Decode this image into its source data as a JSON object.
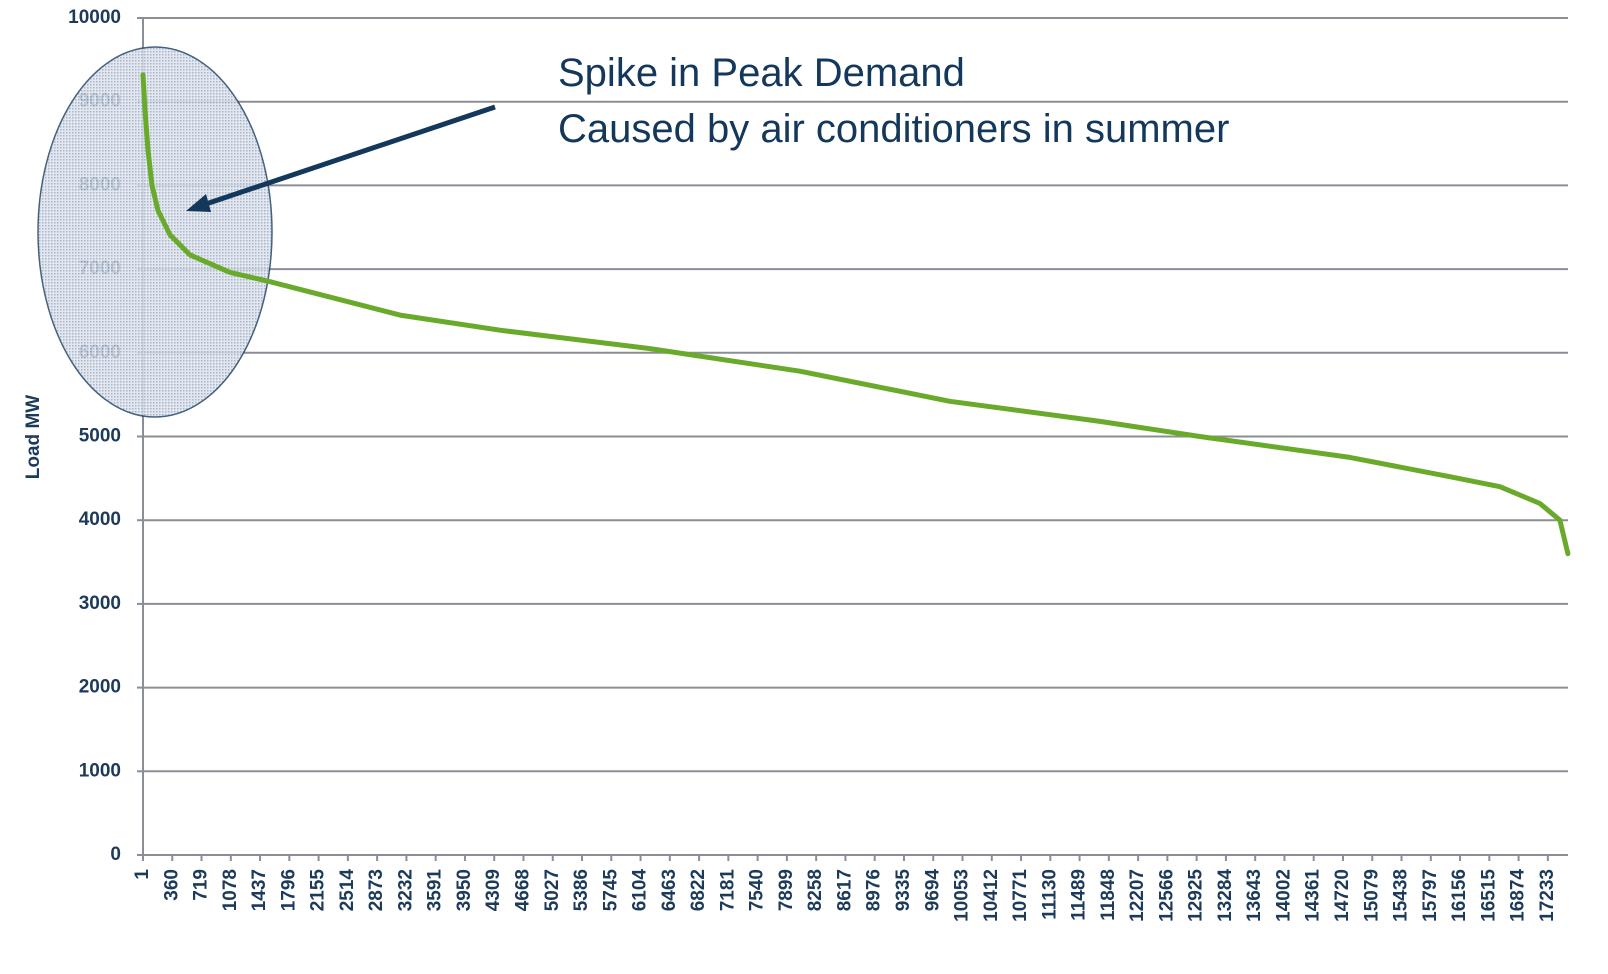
{
  "chart_data": {
    "type": "line",
    "ylabel": "Load MW",
    "annotations": [
      "Spike in Peak Demand",
      "Caused by air conditioners in summer"
    ],
    "color": "#6aaa2a",
    "x": [
      1,
      25,
      62,
      111,
      185,
      332,
      578,
      1069,
      1559,
      3153,
      4380,
      6220,
      8059,
      9899,
      11739,
      12965,
      14805,
      16032,
      16645,
      17136,
      17381,
      17479
    ],
    "values": [
      9320,
      8900,
      8420,
      8000,
      7700,
      7410,
      7170,
      6960,
      6850,
      6450,
      6270,
      6050,
      5780,
      5420,
      5180,
      5000,
      4750,
      4520,
      4400,
      4200,
      4000,
      3600
    ],
    "xlim": [
      1,
      17480
    ],
    "xticks": [
      1,
      360,
      719,
      1078,
      1437,
      1796,
      2155,
      2514,
      2873,
      3232,
      3591,
      3950,
      4309,
      4668,
      5027,
      5386,
      5745,
      6104,
      6463,
      6822,
      7181,
      7540,
      7899,
      8258,
      8617,
      8976,
      9335,
      9694,
      10053,
      10412,
      10771,
      11130,
      11489,
      11848,
      12207,
      12566,
      12925,
      13284,
      13643,
      14002,
      14361,
      14720,
      15079,
      15438,
      15797,
      16156,
      16515,
      16874,
      17233
    ],
    "ylim": [
      0,
      10000
    ],
    "yticks": [
      0,
      1000,
      2000,
      3000,
      4000,
      5000,
      6000,
      7000,
      8000,
      9000,
      10000
    ],
    "grid": true
  }
}
